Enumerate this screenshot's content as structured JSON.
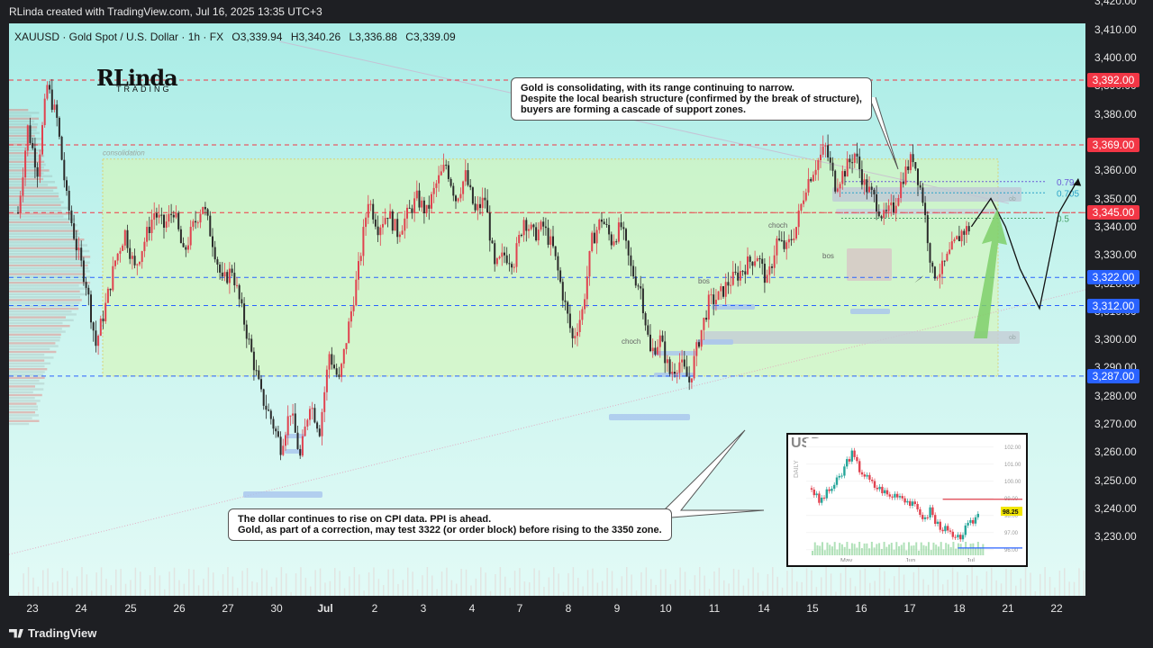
{
  "attribution": "RLinda created with TradingView.com, Jul 16, 2025 13:35 UTC+3",
  "header": {
    "symbol": "XAUUSD · Gold Spot / U.S. Dollar · 1h · FX",
    "open": "O3,339.94",
    "high": "H3,340.26",
    "low": "L3,336.88",
    "close": "C3,339.09"
  },
  "logo": {
    "top": "RLinda",
    "bottom": "TRADING"
  },
  "footer": {
    "brand": "TradingView"
  },
  "labels": {
    "consolidation": "consolidation",
    "choch1": "choch",
    "bos1": "bos",
    "choch2": "choch",
    "bos2": "bos",
    "ob": "ob",
    "fib_079": "0.79",
    "fib_0705": "0.705",
    "fib_05": "0.5"
  },
  "notes": {
    "top": [
      "Gold is consolidating, with its range continuing to narrow.",
      "Despite the local bearish structure (confirmed by the break of structure),",
      "buyers are forming a cascade of support zones."
    ],
    "bottom": [
      "The dollar continues to rise on CPI data. PPI is ahead.",
      "Gold, as part of a correction, may test 3322 (or order block) before rising to the 3350 zone."
    ]
  },
  "colors": {
    "bull": "#26a69a",
    "bear": "#ef5350",
    "resistance": "#f23645",
    "support": "#2962ff",
    "zone": "#d8f5b0"
  },
  "chart_data": [
    {
      "type": "candlestick",
      "symbol": "XAUUSD",
      "timeframe": "1h",
      "ylim": [
        3222,
        3425
      ],
      "y_ticks": [
        3230,
        3240,
        3250,
        3260,
        3270,
        3280,
        3290,
        3300,
        3310,
        3320,
        3330,
        3340,
        3350,
        3360,
        3370,
        3380,
        3390,
        3400,
        3410,
        3420
      ],
      "x_ticks": [
        "23",
        "24",
        "25",
        "26",
        "27",
        "30",
        "Jul",
        "2",
        "3",
        "4",
        "7",
        "8",
        "9",
        "10",
        "11",
        "14",
        "15",
        "16",
        "17",
        "18",
        "21",
        "22"
      ],
      "price_levels": [
        {
          "value": 3392.0,
          "label": "3,392.00",
          "color": "red"
        },
        {
          "value": 3369.0,
          "label": "3,369.00",
          "color": "red"
        },
        {
          "value": 3345.0,
          "label": "3,345.00",
          "color": "red"
        },
        {
          "value": 3322.0,
          "label": "3,322.00",
          "color": "blue"
        },
        {
          "value": 3312.0,
          "label": "3,312.00",
          "color": "blue"
        },
        {
          "value": 3287.0,
          "label": "3,287.00",
          "color": "blue"
        }
      ],
      "consolidation_range": [
        3287,
        3364
      ],
      "price_path": [
        [
          0,
          3345
        ],
        [
          2,
          3375
        ],
        [
          4,
          3360
        ],
        [
          6,
          3390
        ],
        [
          8,
          3378
        ],
        [
          10,
          3350
        ],
        [
          12,
          3333
        ],
        [
          14,
          3320
        ],
        [
          16,
          3298
        ],
        [
          18,
          3312
        ],
        [
          20,
          3328
        ],
        [
          22,
          3338
        ],
        [
          24,
          3325
        ],
        [
          26,
          3335
        ],
        [
          28,
          3345
        ],
        [
          30,
          3340
        ],
        [
          32,
          3346
        ],
        [
          34,
          3330
        ],
        [
          36,
          3340
        ],
        [
          38,
          3348
        ],
        [
          40,
          3335
        ],
        [
          42,
          3320
        ],
        [
          44,
          3325
        ],
        [
          46,
          3310
        ],
        [
          48,
          3295
        ],
        [
          50,
          3280
        ],
        [
          52,
          3272
        ],
        [
          54,
          3262
        ],
        [
          56,
          3275
        ],
        [
          58,
          3258
        ],
        [
          60,
          3278
        ],
        [
          62,
          3268
        ],
        [
          64,
          3295
        ],
        [
          66,
          3285
        ],
        [
          68,
          3305
        ],
        [
          70,
          3325
        ],
        [
          72,
          3350
        ],
        [
          74,
          3340
        ],
        [
          76,
          3345
        ],
        [
          78,
          3338
        ],
        [
          80,
          3344
        ],
        [
          82,
          3350
        ],
        [
          84,
          3345
        ],
        [
          86,
          3355
        ],
        [
          88,
          3362
        ],
        [
          90,
          3350
        ],
        [
          92,
          3358
        ],
        [
          94,
          3345
        ],
        [
          96,
          3350
        ],
        [
          98,
          3325
        ],
        [
          100,
          3330
        ],
        [
          102,
          3328
        ],
        [
          104,
          3343
        ],
        [
          106,
          3337
        ],
        [
          108,
          3340
        ],
        [
          110,
          3332
        ],
        [
          112,
          3316
        ],
        [
          114,
          3300
        ],
        [
          116,
          3310
        ],
        [
          118,
          3335
        ],
        [
          120,
          3343
        ],
        [
          122,
          3335
        ],
        [
          124,
          3340
        ],
        [
          126,
          3325
        ],
        [
          128,
          3318
        ],
        [
          130,
          3295
        ],
        [
          132,
          3300
        ],
        [
          134,
          3288
        ],
        [
          136,
          3292
        ],
        [
          138,
          3285
        ],
        [
          140,
          3300
        ],
        [
          142,
          3313
        ],
        [
          144,
          3315
        ],
        [
          146,
          3320
        ],
        [
          148,
          3323
        ],
        [
          150,
          3327
        ],
        [
          152,
          3330
        ],
        [
          154,
          3320
        ],
        [
          156,
          3335
        ],
        [
          158,
          3332
        ],
        [
          160,
          3340
        ],
        [
          162,
          3355
        ],
        [
          164,
          3362
        ],
        [
          166,
          3368
        ],
        [
          168,
          3355
        ],
        [
          170,
          3360
        ],
        [
          172,
          3366
        ],
        [
          174,
          3355
        ],
        [
          176,
          3350
        ],
        [
          178,
          3343
        ],
        [
          180,
          3347
        ],
        [
          182,
          3358
        ],
        [
          184,
          3365
        ],
        [
          186,
          3350
        ],
        [
          188,
          3323
        ],
        [
          190,
          3325
        ],
        [
          192,
          3332
        ],
        [
          194,
          3338
        ],
        [
          196,
          3340
        ]
      ],
      "forecast_path": [
        [
          196,
          3340
        ],
        [
          200,
          3350
        ],
        [
          203,
          3340
        ],
        [
          206,
          3325
        ],
        [
          210,
          3311
        ],
        [
          214,
          3345
        ],
        [
          218,
          3357
        ]
      ]
    },
    {
      "type": "candlestick",
      "title": "USD",
      "timeframe": "DAILY",
      "x_ticks": [
        "May",
        "Jun",
        "Jul"
      ],
      "y_ticks": [
        "102.00",
        "101.00",
        "100.00",
        "99.00",
        "98.00",
        "97.00",
        "96.00"
      ],
      "last_price": "98.25",
      "ylim": [
        95.8,
        102.2
      ],
      "resistance": 98.95,
      "support": 96.1,
      "path": [
        [
          0,
          99.6
        ],
        [
          3,
          98.8
        ],
        [
          6,
          99.3
        ],
        [
          9,
          99.8
        ],
        [
          12,
          100.4
        ],
        [
          14,
          101.2
        ],
        [
          16,
          101.6
        ],
        [
          19,
          100.7
        ],
        [
          22,
          100.2
        ],
        [
          25,
          99.7
        ],
        [
          28,
          99.5
        ],
        [
          31,
          99.1
        ],
        [
          34,
          99.3
        ],
        [
          37,
          99.0
        ],
        [
          40,
          98.6
        ],
        [
          43,
          98.2
        ],
        [
          45,
          97.7
        ],
        [
          47,
          98.4
        ],
        [
          49,
          97.6
        ],
        [
          52,
          97.3
        ],
        [
          55,
          96.9
        ],
        [
          57,
          96.5
        ],
        [
          59,
          96.8
        ],
        [
          61,
          97.2
        ],
        [
          63,
          97.5
        ],
        [
          65,
          97.9
        ],
        [
          67,
          98.25
        ]
      ]
    }
  ]
}
